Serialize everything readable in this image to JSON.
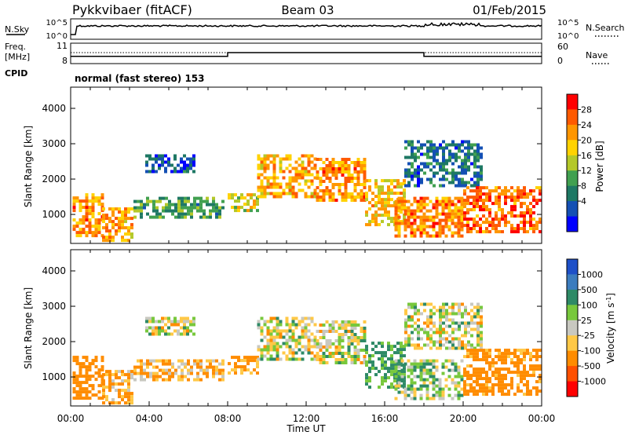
{
  "header": {
    "radar_title": "Pykkvibaer (fitACF)",
    "beam": "Beam 03",
    "date": "01/Feb/2015"
  },
  "status_panels": {
    "nsky_label": "N.Sky",
    "nsearch_label": "N.Search",
    "noise_tick_high": "10^5",
    "noise_tick_low": "10^0",
    "freq_label_line1": "Freq.",
    "freq_label_line2": "[MHz]",
    "freq_ticks": [
      "11",
      "8"
    ],
    "nave_label": "Nave",
    "nave_ticks": [
      "60",
      "0"
    ],
    "cpid_label": "CPID",
    "cpid_value": "normal (fast stereo) 153",
    "freq_series_mhz": [
      {
        "from_h": 0,
        "to_h": 8,
        "value": 10.0
      },
      {
        "from_h": 8,
        "to_h": 18,
        "value": 11.0
      },
      {
        "from_h": 18,
        "to_h": 24,
        "value": 10.0
      }
    ]
  },
  "chart_data": [
    {
      "type": "heatmap",
      "ylabel": "Slant Range [km]",
      "xlabel": "",
      "xlim": [
        0,
        24
      ],
      "ylim": [
        180,
        4600
      ],
      "yticks": [
        1000,
        2000,
        3000,
        4000
      ],
      "colorbar": {
        "label": "Power [dB]",
        "ticks": [
          "28",
          "24",
          "20",
          "16",
          "12",
          "8",
          "4"
        ],
        "colors": [
          "#ff0000",
          "#ff5a00",
          "#ff9600",
          "#ffd200",
          "#b4c828",
          "#41a050",
          "#1e7864",
          "#1450b4",
          "#0000ff"
        ]
      },
      "regions": [
        {
          "t": [
            0.1,
            1.6
          ],
          "r": [
            400,
            1600
          ],
          "v": 24
        },
        {
          "t": [
            1.6,
            3.2
          ],
          "r": [
            300,
            1200
          ],
          "v": 22
        },
        {
          "t": [
            3.2,
            7.8
          ],
          "r": [
            900,
            1500
          ],
          "v": 12
        },
        {
          "t": [
            3.8,
            6.2
          ],
          "r": [
            2250,
            2700
          ],
          "v": 6
        },
        {
          "t": [
            8.0,
            9.5
          ],
          "r": [
            1100,
            1600
          ],
          "v": 18
        },
        {
          "t": [
            9.5,
            12.5
          ],
          "r": [
            1500,
            2700
          ],
          "v": 22
        },
        {
          "t": [
            12.5,
            15.0
          ],
          "r": [
            1400,
            2600
          ],
          "v": 24
        },
        {
          "t": [
            15.0,
            17.0
          ],
          "r": [
            700,
            2000
          ],
          "v": 20
        },
        {
          "t": [
            16.5,
            20.0
          ],
          "r": [
            400,
            1500
          ],
          "v": 24
        },
        {
          "t": [
            17.0,
            21.0
          ],
          "r": [
            1800,
            3100
          ],
          "v": 8
        },
        {
          "t": [
            20.0,
            24.0
          ],
          "r": [
            500,
            1800
          ],
          "v": 26
        }
      ]
    },
    {
      "type": "heatmap",
      "ylabel": "Slant Range [km]",
      "xlabel": "Time UT",
      "xlim": [
        0,
        24
      ],
      "ylim": [
        180,
        4600
      ],
      "xticks": [
        "00:00",
        "04:00",
        "08:00",
        "12:00",
        "16:00",
        "20:00",
        "00:00"
      ],
      "yticks": [
        1000,
        2000,
        3000,
        4000
      ],
      "colorbar": {
        "label": "Velocity [m s^-1]",
        "ticks": [
          "1000",
          "500",
          "100",
          "25",
          "-25",
          "-100",
          "-500",
          "-1000"
        ],
        "colors": [
          "#1e50c8",
          "#3c7cbe",
          "#2e8a66",
          "#78c83c",
          "#c8c8c0",
          "#ffc846",
          "#ff8c00",
          "#ff5000",
          "#ff0000"
        ]
      },
      "regions": [
        {
          "t": [
            0.1,
            1.6
          ],
          "r": [
            400,
            1600
          ],
          "v": -300
        },
        {
          "t": [
            1.6,
            3.2
          ],
          "r": [
            300,
            1200
          ],
          "v": -100
        },
        {
          "t": [
            3.2,
            7.8
          ],
          "r": [
            900,
            1500
          ],
          "v": -100
        },
        {
          "t": [
            3.8,
            6.2
          ],
          "r": [
            2250,
            2700
          ],
          "v": 0
        },
        {
          "t": [
            8.0,
            9.5
          ],
          "r": [
            1100,
            1600
          ],
          "v": -150
        },
        {
          "t": [
            9.5,
            12.5
          ],
          "r": [
            1500,
            2700
          ],
          "v": 0
        },
        {
          "t": [
            12.5,
            15.0
          ],
          "r": [
            1400,
            2600
          ],
          "v": 0
        },
        {
          "t": [
            15.0,
            17.0
          ],
          "r": [
            700,
            2000
          ],
          "v": 150
        },
        {
          "t": [
            16.5,
            20.0
          ],
          "r": [
            400,
            1500
          ],
          "v": 60
        },
        {
          "t": [
            17.0,
            21.0
          ],
          "r": [
            1800,
            3100
          ],
          "v": 0
        },
        {
          "t": [
            20.0,
            24.0
          ],
          "r": [
            500,
            1800
          ],
          "v": -200
        }
      ]
    }
  ]
}
